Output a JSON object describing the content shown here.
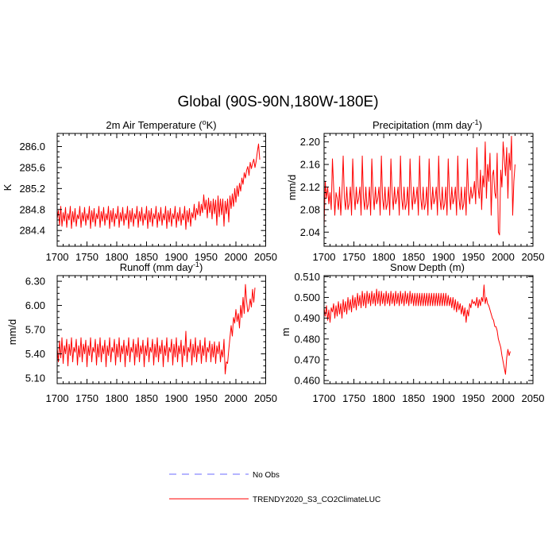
{
  "main_title": "Global (90S-90N,180W-180E)",
  "colors": {
    "model": "#ff0000",
    "obs": "#6b6bff",
    "axis": "#000000"
  },
  "legend": {
    "obs_label": "No Obs",
    "model_label": "TRENDY2020_S3_CO2ClimateLUC"
  },
  "chart_data": [
    {
      "type": "line",
      "title_main": "2m Air Temperature (",
      "title_sup": "o",
      "title_end": "K)",
      "ylabel": "K",
      "xlim": [
        1700,
        2050
      ],
      "ylim": [
        284.1,
        286.25
      ],
      "xticks": [
        1700,
        1750,
        1800,
        1850,
        1900,
        1950,
        2000,
        2050
      ],
      "yticks": [
        284.4,
        284.8,
        285.2,
        285.6,
        286.0
      ],
      "ytick_labels": [
        "284.4",
        "284.8",
        "285.2",
        "285.6",
        "286.0"
      ],
      "series": [
        {
          "name": "TRENDY2020_S3_CO2ClimateLUC",
          "x_start": 1700,
          "x_step": 2,
          "values": [
            284.62,
            284.78,
            284.5,
            284.86,
            284.48,
            284.74,
            284.58,
            284.84,
            284.46,
            284.72,
            284.6,
            284.86,
            284.44,
            284.76,
            284.56,
            284.82,
            284.48,
            284.7,
            284.62,
            284.86,
            284.46,
            284.74,
            284.58,
            284.84,
            284.5,
            284.72,
            284.6,
            284.86,
            284.44,
            284.78,
            284.56,
            284.82,
            284.48,
            284.72,
            284.62,
            284.86,
            284.46,
            284.76,
            284.58,
            284.84,
            284.5,
            284.72,
            284.6,
            284.86,
            284.44,
            284.78,
            284.56,
            284.82,
            284.48,
            284.72,
            284.62,
            284.86,
            284.46,
            284.74,
            284.58,
            284.84,
            284.5,
            284.72,
            284.6,
            284.86,
            284.44,
            284.78,
            284.56,
            284.82,
            284.48,
            284.72,
            284.62,
            284.86,
            284.46,
            284.76,
            284.58,
            284.84,
            284.5,
            284.72,
            284.6,
            284.86,
            284.44,
            284.78,
            284.56,
            284.82,
            284.48,
            284.72,
            284.62,
            284.86,
            284.46,
            284.74,
            284.58,
            284.84,
            284.5,
            284.72,
            284.6,
            284.86,
            284.44,
            284.78,
            284.56,
            284.82,
            284.48,
            284.72,
            284.62,
            284.86,
            284.46,
            284.74,
            284.58,
            284.84,
            284.5,
            284.72,
            284.6,
            284.86,
            284.42,
            284.78,
            284.56,
            284.82,
            284.48,
            284.74,
            284.64,
            284.9,
            284.6,
            284.82,
            284.7,
            284.95,
            284.68,
            284.9,
            284.74,
            285.08,
            284.8,
            284.98,
            284.64,
            285.02,
            284.74,
            284.96,
            284.62,
            285.0,
            284.72,
            284.98,
            284.5,
            285.06,
            284.66,
            285.0,
            284.7,
            285.0,
            284.48,
            284.96,
            284.72,
            285.0,
            284.56,
            285.06,
            284.82,
            285.1,
            284.86,
            285.2,
            284.94,
            285.25,
            285.05,
            285.3,
            285.15,
            285.4,
            285.28,
            285.5,
            285.4,
            285.55,
            285.62,
            285.45,
            285.7,
            285.58,
            285.68,
            285.76,
            285.6,
            285.72,
            285.9,
            286.05,
            285.75
          ]
        }
      ]
    },
    {
      "type": "line",
      "title_main": "Precipitation (mm day",
      "title_sup": "-1",
      "title_end": ")",
      "ylabel": "mm/d",
      "xlim": [
        1700,
        2050
      ],
      "ylim": [
        2.015,
        2.215
      ],
      "xticks": [
        1700,
        1750,
        1800,
        1850,
        1900,
        1950,
        2000,
        2050
      ],
      "yticks": [
        2.04,
        2.08,
        2.12,
        2.16,
        2.2
      ],
      "ytick_labels": [
        "2.04",
        "2.08",
        "2.12",
        "2.16",
        "2.20"
      ],
      "series": [
        {
          "name": "TRENDY2020_S3_CO2ClimateLUC",
          "x_start": 1700,
          "x_step": 2,
          "values": [
            2.05,
            2.13,
            2.1,
            2.12,
            2.09,
            2.11,
            2.08,
            2.17,
            2.12,
            2.07,
            2.11,
            2.1,
            2.08,
            2.12,
            2.07,
            2.11,
            2.175,
            2.1,
            2.08,
            2.12,
            2.08,
            2.09,
            2.12,
            2.07,
            2.17,
            2.11,
            2.08,
            2.12,
            2.09,
            2.1,
            2.12,
            2.07,
            2.175,
            2.1,
            2.08,
            2.12,
            2.08,
            2.09,
            2.12,
            2.07,
            2.17,
            2.11,
            2.08,
            2.12,
            2.09,
            2.1,
            2.12,
            2.07,
            2.175,
            2.1,
            2.08,
            2.12,
            2.08,
            2.09,
            2.12,
            2.07,
            2.17,
            2.11,
            2.08,
            2.12,
            2.09,
            2.1,
            2.12,
            2.07,
            2.175,
            2.1,
            2.08,
            2.12,
            2.08,
            2.09,
            2.12,
            2.07,
            2.17,
            2.11,
            2.08,
            2.12,
            2.09,
            2.1,
            2.12,
            2.07,
            2.175,
            2.1,
            2.08,
            2.12,
            2.08,
            2.09,
            2.12,
            2.07,
            2.17,
            2.11,
            2.08,
            2.12,
            2.09,
            2.1,
            2.12,
            2.07,
            2.175,
            2.1,
            2.08,
            2.12,
            2.08,
            2.09,
            2.12,
            2.07,
            2.17,
            2.11,
            2.08,
            2.12,
            2.09,
            2.1,
            2.12,
            2.07,
            2.175,
            2.1,
            2.08,
            2.12,
            2.08,
            2.09,
            2.12,
            2.07,
            2.17,
            2.11,
            2.09,
            2.12,
            2.1,
            2.11,
            2.13,
            2.09,
            2.19,
            2.12,
            2.1,
            2.15,
            2.08,
            2.14,
            2.12,
            2.2,
            2.1,
            2.16,
            2.13,
            2.18,
            2.07,
            2.14,
            2.15,
            2.11,
            2.1,
            2.18,
            2.04,
            2.035,
            2.15,
            2.12,
            2.2,
            2.17,
            2.14,
            2.19,
            2.1,
            2.18,
            2.15,
            2.21,
            2.07,
            2.13,
            2.16
          ]
        }
      ]
    },
    {
      "type": "line",
      "title_main": "Runoff (mm day",
      "title_sup": "-1",
      "title_end": ")",
      "ylabel": "mm/d",
      "xlim": [
        1700,
        2050
      ],
      "ylim": [
        5.03,
        6.37
      ],
      "xticks": [
        1700,
        1750,
        1800,
        1850,
        1900,
        1950,
        2000,
        2050
      ],
      "yticks": [
        5.1,
        5.4,
        5.7,
        6.0,
        6.3
      ],
      "ytick_labels": [
        "5.10",
        "5.40",
        "5.70",
        "6.00",
        "6.30"
      ],
      "series": [
        {
          "name": "TRENDY2020_S3_CO2ClimateLUC",
          "x_start": 1700,
          "x_step": 2,
          "values": [
            5.48,
            5.3,
            5.56,
            5.35,
            5.6,
            5.28,
            5.5,
            5.4,
            5.58,
            5.25,
            5.52,
            5.38,
            5.6,
            5.3,
            5.48,
            5.42,
            5.58,
            5.26,
            5.5,
            5.36,
            5.6,
            5.3,
            5.52,
            5.4,
            5.57,
            5.24,
            5.5,
            5.38,
            5.6,
            5.3,
            5.48,
            5.42,
            5.58,
            5.26,
            5.52,
            5.36,
            5.6,
            5.3,
            5.5,
            5.4,
            5.57,
            5.24,
            5.5,
            5.38,
            5.6,
            5.3,
            5.48,
            5.42,
            5.58,
            5.26,
            5.52,
            5.36,
            5.6,
            5.3,
            5.5,
            5.4,
            5.57,
            5.24,
            5.5,
            5.38,
            5.6,
            5.3,
            5.48,
            5.42,
            5.58,
            5.26,
            5.52,
            5.36,
            5.6,
            5.3,
            5.5,
            5.4,
            5.57,
            5.24,
            5.5,
            5.38,
            5.6,
            5.3,
            5.48,
            5.42,
            5.58,
            5.26,
            5.52,
            5.36,
            5.6,
            5.3,
            5.5,
            5.4,
            5.57,
            5.24,
            5.5,
            5.38,
            5.6,
            5.3,
            5.48,
            5.42,
            5.58,
            5.26,
            5.52,
            5.36,
            5.6,
            5.3,
            5.5,
            5.4,
            5.57,
            5.24,
            5.5,
            5.38,
            5.68,
            5.3,
            5.48,
            5.42,
            5.58,
            5.26,
            5.52,
            5.36,
            5.6,
            5.3,
            5.5,
            5.4,
            5.57,
            5.28,
            5.5,
            5.38,
            5.6,
            5.3,
            5.48,
            5.42,
            5.56,
            5.3,
            5.52,
            5.36,
            5.55,
            5.28,
            5.5,
            5.4,
            5.55,
            5.3,
            5.45,
            5.36,
            5.58,
            5.15,
            5.3,
            5.28,
            5.45,
            5.6,
            5.75,
            5.62,
            5.85,
            5.78,
            5.95,
            5.8,
            5.9,
            5.72,
            6.0,
            5.85,
            6.1,
            5.9,
            6.26,
            6.05,
            5.92,
            5.96,
            6.08,
            5.98,
            6.2,
            6.04,
            6.22
          ]
        }
      ]
    },
    {
      "type": "line",
      "title_main": "Snow Depth (m)",
      "title_sup": "",
      "title_end": "",
      "ylabel": "m",
      "xlim": [
        1700,
        2050
      ],
      "ylim": [
        0.4585,
        0.5105
      ],
      "xticks": [
        1700,
        1750,
        1800,
        1850,
        1900,
        1950,
        2000,
        2050
      ],
      "yticks": [
        0.46,
        0.47,
        0.48,
        0.49,
        0.5,
        0.51
      ],
      "ytick_labels": [
        "0.460",
        "0.470",
        "0.480",
        "0.490",
        "0.500",
        "0.510"
      ],
      "series": [
        {
          "name": "TRENDY2020_S3_CO2ClimateLUC",
          "x_start": 1700,
          "x_step": 2,
          "values": [
            0.495,
            0.491,
            0.496,
            0.489,
            0.494,
            0.488,
            0.495,
            0.493,
            0.497,
            0.49,
            0.496,
            0.491,
            0.498,
            0.492,
            0.497,
            0.49,
            0.499,
            0.493,
            0.498,
            0.492,
            0.5,
            0.494,
            0.499,
            0.493,
            0.501,
            0.495,
            0.5,
            0.494,
            0.502,
            0.496,
            0.501,
            0.495,
            0.503,
            0.496,
            0.502,
            0.495,
            0.503,
            0.497,
            0.502,
            0.496,
            0.503,
            0.497,
            0.502,
            0.496,
            0.504,
            0.497,
            0.503,
            0.496,
            0.503,
            0.497,
            0.502,
            0.496,
            0.503,
            0.497,
            0.502,
            0.496,
            0.503,
            0.497,
            0.502,
            0.496,
            0.503,
            0.497,
            0.502,
            0.496,
            0.503,
            0.497,
            0.502,
            0.496,
            0.503,
            0.497,
            0.502,
            0.496,
            0.503,
            0.497,
            0.502,
            0.496,
            0.502,
            0.496,
            0.502,
            0.496,
            0.502,
            0.496,
            0.502,
            0.496,
            0.502,
            0.496,
            0.502,
            0.496,
            0.502,
            0.496,
            0.502,
            0.496,
            0.502,
            0.496,
            0.502,
            0.496,
            0.502,
            0.496,
            0.502,
            0.496,
            0.502,
            0.496,
            0.502,
            0.496,
            0.501,
            0.496,
            0.5,
            0.495,
            0.5,
            0.494,
            0.499,
            0.493,
            0.498,
            0.494,
            0.497,
            0.492,
            0.496,
            0.491,
            0.495,
            0.488,
            0.494,
            0.491,
            0.497,
            0.495,
            0.499,
            0.497,
            0.498,
            0.496,
            0.5,
            0.495,
            0.499,
            0.496,
            0.5,
            0.498,
            0.506,
            0.497,
            0.5,
            0.497,
            0.496,
            0.494,
            0.492,
            0.49,
            0.489,
            0.486,
            0.486,
            0.484,
            0.48,
            0.478,
            0.476,
            0.472,
            0.469,
            0.466,
            0.463,
            0.471,
            0.475,
            0.472,
            0.474
          ]
        }
      ]
    }
  ]
}
